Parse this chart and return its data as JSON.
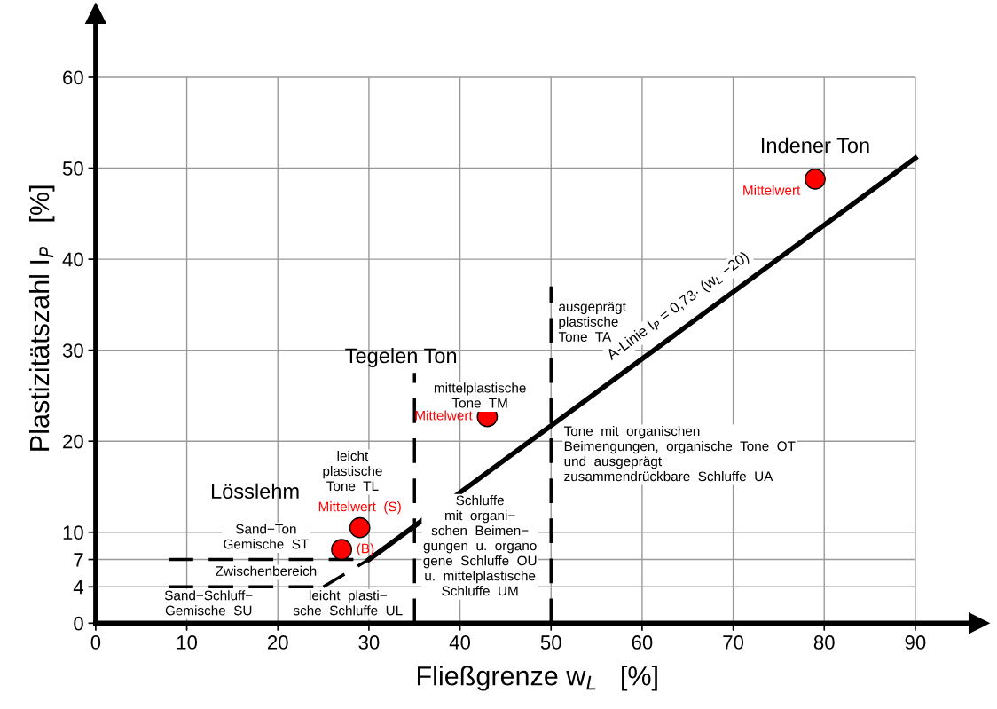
{
  "chart_data": {
    "type": "scatter",
    "xlabel": "Fließgrenze w$_{L}$   [%]",
    "ylabel": "Plastizitätszahl I$_{P}$   [%]",
    "xlim": [
      0,
      97
    ],
    "ylim": [
      0,
      67
    ],
    "xticks": [
      0,
      10,
      20,
      30,
      40,
      50,
      60,
      70,
      80,
      90
    ],
    "yticks": [
      0,
      4,
      7,
      10,
      20,
      30,
      40,
      50,
      60
    ],
    "grid": true,
    "series": [
      {
        "type": "line",
        "color": "#000000",
        "x": [
          30,
          90
        ],
        "values": [
          7,
          51.1
        ],
        "line_style": "solid",
        "marker": "none"
      },
      {
        "type": "line",
        "color": "#000000",
        "x": [
          25,
          30
        ],
        "values": [
          4,
          7
        ],
        "line_style": "dashed",
        "marker": "none"
      },
      {
        "type": "line",
        "color": "#000000",
        "x": [
          8,
          30
        ],
        "values": [
          7,
          7
        ],
        "line_style": "dashed",
        "marker": "none"
      },
      {
        "type": "line",
        "color": "#000000",
        "x": [
          8,
          25
        ],
        "values": [
          4,
          4
        ],
        "line_style": "dashed",
        "marker": "none"
      },
      {
        "type": "line",
        "color": "#000000",
        "x": [
          35,
          35
        ],
        "values": [
          0,
          27.5
        ],
        "line_style": "dashed",
        "marker": "none"
      },
      {
        "type": "line",
        "color": "#000000",
        "x": [
          50,
          50
        ],
        "values": [
          0,
          37
        ],
        "line_style": "dashed",
        "marker": "none"
      },
      {
        "color": "#ff0000",
        "x": [
          79,
          43,
          29,
          27
        ],
        "values": [
          48.8,
          22.7,
          10.5,
          8.1
        ],
        "marker": "circle"
      }
    ],
    "annotations": [
      {
        "text": "Indener Ton",
        "x": 79,
        "y": 48.8
      },
      {
        "text": "Mittelwert",
        "x": 79,
        "y": 48.8
      },
      {
        "text": "Tegelen Ton",
        "x": 43,
        "y": 22.7
      },
      {
        "text": "Mittelwert",
        "x": 43,
        "y": 22.7
      },
      "Lösslehm",
      {
        "text": "Mittelwert  (S)",
        "x": 29,
        "y": 10.5
      },
      {
        "text": "(B)",
        "x": 27,
        "y": 8.1
      },
      "A-Linie I$_{P}$ = 0,73· (w$_{L}$ −20)",
      "leicht\nplastische\nTone  TL",
      "Sand−Ton\nGemische  ST",
      "Zwischenbereich",
      "Sand−Schluff−\nGemische  SU",
      "leicht  plasti−\nsche  Schluffe  UL",
      "mittelplastische\nTone  TM",
      "Schluffe\nmit  organi−\nschen  Beimen−\ngungen  u.  organo\ngene  Schluffe  OU\nu.  mittelplastische\nSchluffe  UM",
      "ausgeprägt\nplastische\nTone  TA",
      "Tone  mit  organischen\nBeimengungen,  organische  Tone  OT\nund  ausgeprägt\nzusammendrückbare  Schluffe  UA"
    ]
  }
}
